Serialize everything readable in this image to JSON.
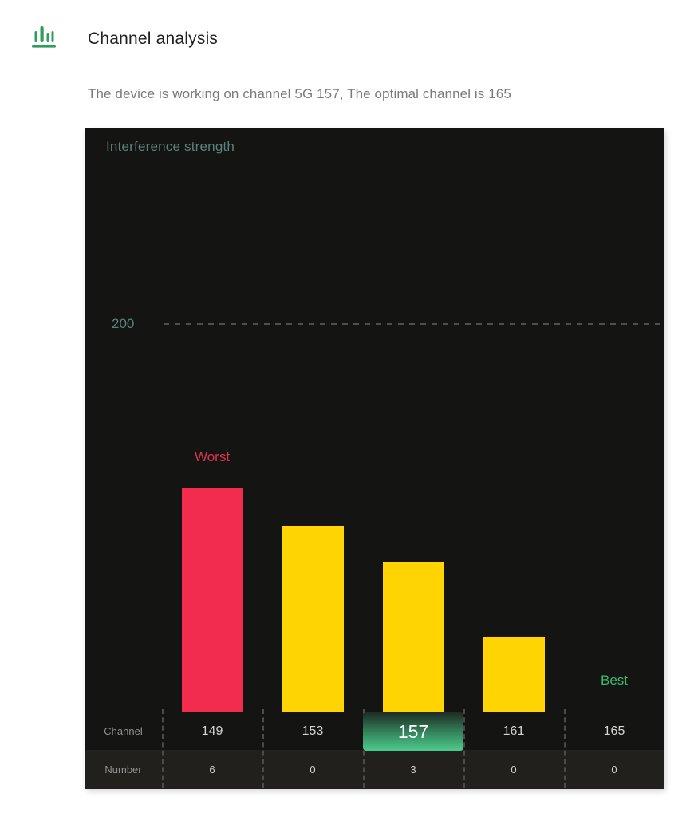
{
  "header": {
    "icon": "bar-chart-icon",
    "title": "Channel analysis",
    "subtitle": "The device is working on channel 5G 157, The optimal channel is 165"
  },
  "chart_data": {
    "type": "bar",
    "title": "Interference strength",
    "ylabel": "Interference strength",
    "xlabel": "Channel",
    "band": "5G",
    "current_channel": "157",
    "optimal_channel": "165",
    "reference_line": {
      "label": "200",
      "value": 200
    },
    "grid": "single dashed reference line only",
    "legend": "none",
    "row_labels": {
      "channel": "Channel",
      "number": "Number"
    },
    "annotations": {
      "worst": "Worst",
      "best": "Best"
    },
    "points": [
      {
        "channel": "149",
        "interference": 115,
        "number": "6",
        "bar_color": "#f12c4e",
        "worst": true,
        "selected": false,
        "best": false
      },
      {
        "channel": "153",
        "interference": 96,
        "number": "0",
        "bar_color": "#ffd402",
        "worst": false,
        "selected": false,
        "best": false
      },
      {
        "channel": "157",
        "interference": 77,
        "number": "3",
        "bar_color": "#ffd402",
        "worst": false,
        "selected": true,
        "best": false
      },
      {
        "channel": "161",
        "interference": 39,
        "number": "0",
        "bar_color": "#ffd402",
        "worst": false,
        "selected": false,
        "best": false
      },
      {
        "channel": "165",
        "interference": 0,
        "number": "0",
        "bar_color": null,
        "worst": false,
        "selected": false,
        "best": true
      }
    ],
    "colors": {
      "chart_background": "#141412",
      "number_row_background": "#21201d",
      "axis_label": "#5b817c",
      "worst_label": "#dd3350",
      "best_label": "#3bbb70",
      "worst_bar": "#f12c4e",
      "normal_bar": "#ffd402",
      "selected_highlight": "#4ecb8e",
      "icon_green": "#2e9e5e"
    }
  }
}
